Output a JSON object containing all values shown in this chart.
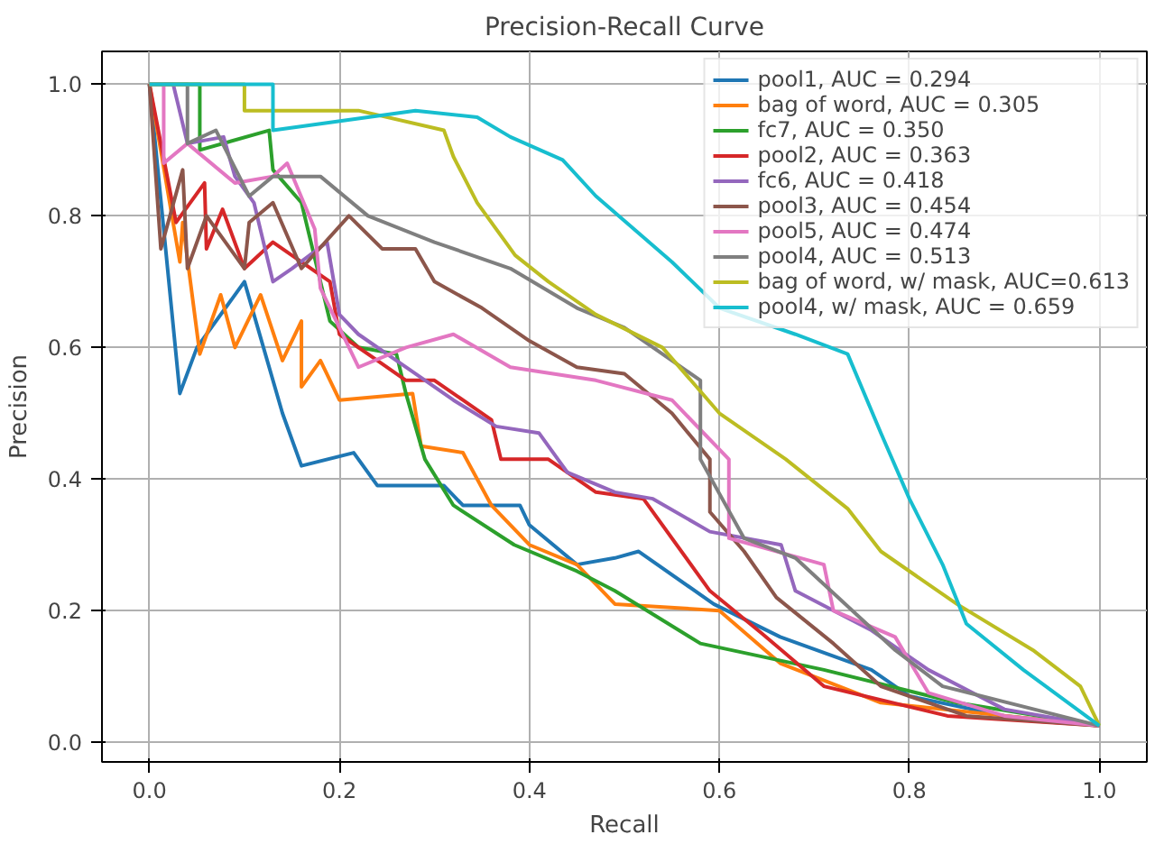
{
  "chart_data": {
    "type": "line",
    "title": "Precision-Recall Curve",
    "xlabel": "Recall",
    "ylabel": "Precision",
    "xlim": [
      -0.05,
      1.05
    ],
    "ylim": [
      -0.03,
      1.05
    ],
    "xticks": [
      {
        "value": 0,
        "label": "0.0"
      },
      {
        "value": 0.2,
        "label": "0.2"
      },
      {
        "value": 0.4,
        "label": "0.4"
      },
      {
        "value": 0.6,
        "label": "0.6"
      },
      {
        "value": 0.8,
        "label": "0.8"
      },
      {
        "value": 1,
        "label": "1.0"
      }
    ],
    "yticks": [
      {
        "value": 0,
        "label": "0.0"
      },
      {
        "value": 0.2,
        "label": "0.2"
      },
      {
        "value": 0.4,
        "label": "0.4"
      },
      {
        "value": 0.6,
        "label": "0.6"
      },
      {
        "value": 0.8,
        "label": "0.8"
      },
      {
        "value": 1,
        "label": "1.0"
      }
    ],
    "grid": true,
    "legend": "top right",
    "line_style": "solid",
    "marker": "none",
    "series": [
      {
        "name": "pool1, AUC = 0.294",
        "color": "#1f77b4",
        "x": [
          0,
          0.032,
          0.05,
          0.1,
          0.14,
          0.16,
          0.215,
          0.24,
          0.31,
          0.33,
          0.39,
          0.4,
          0.45,
          0.49,
          0.515,
          0.594,
          0.664,
          0.76,
          0.8,
          0.9,
          1.0
        ],
        "values": [
          1,
          0.53,
          0.6,
          0.7,
          0.5,
          0.42,
          0.44,
          0.39,
          0.39,
          0.36,
          0.36,
          0.33,
          0.27,
          0.28,
          0.29,
          0.21,
          0.16,
          0.11,
          0.07,
          0.04,
          0.025
        ]
      },
      {
        "name": "bag of word, AUC = 0.305",
        "color": "#ff7f0e",
        "x": [
          0,
          0.032,
          0.035,
          0.053,
          0.075,
          0.09,
          0.117,
          0.14,
          0.16,
          0.16,
          0.18,
          0.2,
          0.277,
          0.286,
          0.33,
          0.36,
          0.4,
          0.45,
          0.49,
          0.6,
          0.664,
          0.77,
          1.0
        ],
        "values": [
          1,
          0.73,
          0.79,
          0.59,
          0.68,
          0.6,
          0.68,
          0.58,
          0.64,
          0.54,
          0.58,
          0.52,
          0.53,
          0.45,
          0.44,
          0.36,
          0.3,
          0.27,
          0.21,
          0.2,
          0.12,
          0.06,
          0.025
        ]
      },
      {
        "name": "fc7, AUC = 0.350",
        "color": "#2ca02c",
        "x": [
          0,
          0.053,
          0.053,
          0.126,
          0.13,
          0.16,
          0.19,
          0.22,
          0.26,
          0.27,
          0.29,
          0.32,
          0.384,
          0.45,
          0.49,
          0.58,
          0.71,
          0.85,
          1.0
        ],
        "values": [
          1,
          1,
          0.9,
          0.93,
          0.87,
          0.82,
          0.64,
          0.6,
          0.59,
          0.53,
          0.43,
          0.36,
          0.3,
          0.26,
          0.23,
          0.15,
          0.11,
          0.06,
          0.025
        ]
      },
      {
        "name": "pool2, AUC = 0.363",
        "color": "#d62728",
        "x": [
          0,
          0.028,
          0.058,
          0.06,
          0.077,
          0.1,
          0.13,
          0.19,
          0.2,
          0.24,
          0.27,
          0.3,
          0.33,
          0.36,
          0.37,
          0.42,
          0.47,
          0.52,
          0.59,
          0.645,
          0.71,
          0.84,
          1.0
        ],
        "values": [
          1,
          0.79,
          0.85,
          0.75,
          0.81,
          0.72,
          0.76,
          0.7,
          0.62,
          0.58,
          0.55,
          0.55,
          0.52,
          0.49,
          0.43,
          0.43,
          0.38,
          0.37,
          0.23,
          0.165,
          0.085,
          0.04,
          0.025
        ]
      },
      {
        "name": "fc6, AUC = 0.418",
        "color": "#9467bd",
        "x": [
          0,
          0.025,
          0.04,
          0.078,
          0.09,
          0.11,
          0.13,
          0.15,
          0.187,
          0.2,
          0.22,
          0.27,
          0.32,
          0.365,
          0.41,
          0.44,
          0.49,
          0.53,
          0.59,
          0.665,
          0.68,
          0.76,
          0.82,
          0.9,
          1.0
        ],
        "values": [
          1,
          1,
          0.91,
          0.92,
          0.86,
          0.82,
          0.7,
          0.72,
          0.76,
          0.65,
          0.62,
          0.57,
          0.52,
          0.48,
          0.47,
          0.41,
          0.38,
          0.37,
          0.32,
          0.3,
          0.23,
          0.17,
          0.11,
          0.05,
          0.025
        ]
      },
      {
        "name": "pool3, AUC = 0.454",
        "color": "#8c564b",
        "x": [
          0,
          0.012,
          0.035,
          0.04,
          0.06,
          0.1,
          0.105,
          0.13,
          0.16,
          0.21,
          0.245,
          0.28,
          0.3,
          0.35,
          0.4,
          0.45,
          0.5,
          0.55,
          0.59,
          0.59,
          0.626,
          0.66,
          0.72,
          0.77,
          0.86,
          1.0
        ],
        "values": [
          1,
          0.75,
          0.87,
          0.72,
          0.8,
          0.72,
          0.79,
          0.82,
          0.72,
          0.8,
          0.75,
          0.75,
          0.7,
          0.66,
          0.61,
          0.57,
          0.56,
          0.5,
          0.43,
          0.35,
          0.29,
          0.22,
          0.15,
          0.085,
          0.04,
          0.025
        ]
      },
      {
        "name": "pool5, AUC = 0.474",
        "color": "#e377c2",
        "x": [
          0,
          0.015,
          0.015,
          0.04,
          0.09,
          0.13,
          0.145,
          0.174,
          0.18,
          0.22,
          0.27,
          0.32,
          0.38,
          0.47,
          0.55,
          0.61,
          0.61,
          0.71,
          0.72,
          0.785,
          0.82,
          0.9,
          1.0
        ],
        "values": [
          1,
          1,
          0.88,
          0.91,
          0.85,
          0.86,
          0.88,
          0.78,
          0.69,
          0.57,
          0.6,
          0.62,
          0.57,
          0.55,
          0.52,
          0.43,
          0.31,
          0.27,
          0.2,
          0.16,
          0.075,
          0.04,
          0.025
        ]
      },
      {
        "name": "pool4, AUC = 0.513",
        "color": "#7f7f7f",
        "x": [
          0,
          0.04,
          0.04,
          0.07,
          0.105,
          0.13,
          0.18,
          0.23,
          0.3,
          0.38,
          0.45,
          0.5,
          0.55,
          0.58,
          0.58,
          0.626,
          0.68,
          0.74,
          0.785,
          0.835,
          1.0
        ],
        "values": [
          1,
          1,
          0.91,
          0.93,
          0.83,
          0.86,
          0.86,
          0.8,
          0.76,
          0.72,
          0.66,
          0.63,
          0.58,
          0.55,
          0.43,
          0.31,
          0.28,
          0.2,
          0.14,
          0.085,
          0.025
        ]
      },
      {
        "name": "bag of word, w/ mask, AUC=0.613",
        "color": "#bcbd22",
        "x": [
          0,
          0.1,
          0.1,
          0.13,
          0.22,
          0.31,
          0.32,
          0.345,
          0.385,
          0.42,
          0.47,
          0.54,
          0.6,
          0.67,
          0.735,
          0.77,
          0.85,
          0.93,
          0.98,
          1.0
        ],
        "values": [
          1,
          1,
          0.96,
          0.96,
          0.96,
          0.93,
          0.89,
          0.82,
          0.74,
          0.7,
          0.65,
          0.6,
          0.5,
          0.43,
          0.355,
          0.29,
          0.21,
          0.14,
          0.085,
          0.025
        ]
      },
      {
        "name": "pool4, w/ mask, AUC = 0.659",
        "color": "#17becf",
        "x": [
          0,
          0.13,
          0.13,
          0.28,
          0.345,
          0.38,
          0.435,
          0.47,
          0.55,
          0.6,
          0.68,
          0.735,
          0.77,
          0.8,
          0.835,
          0.86,
          0.92,
          1.0
        ],
        "values": [
          1,
          1,
          0.93,
          0.96,
          0.95,
          0.92,
          0.885,
          0.83,
          0.73,
          0.66,
          0.62,
          0.59,
          0.47,
          0.37,
          0.27,
          0.18,
          0.11,
          0.025
        ]
      }
    ]
  }
}
